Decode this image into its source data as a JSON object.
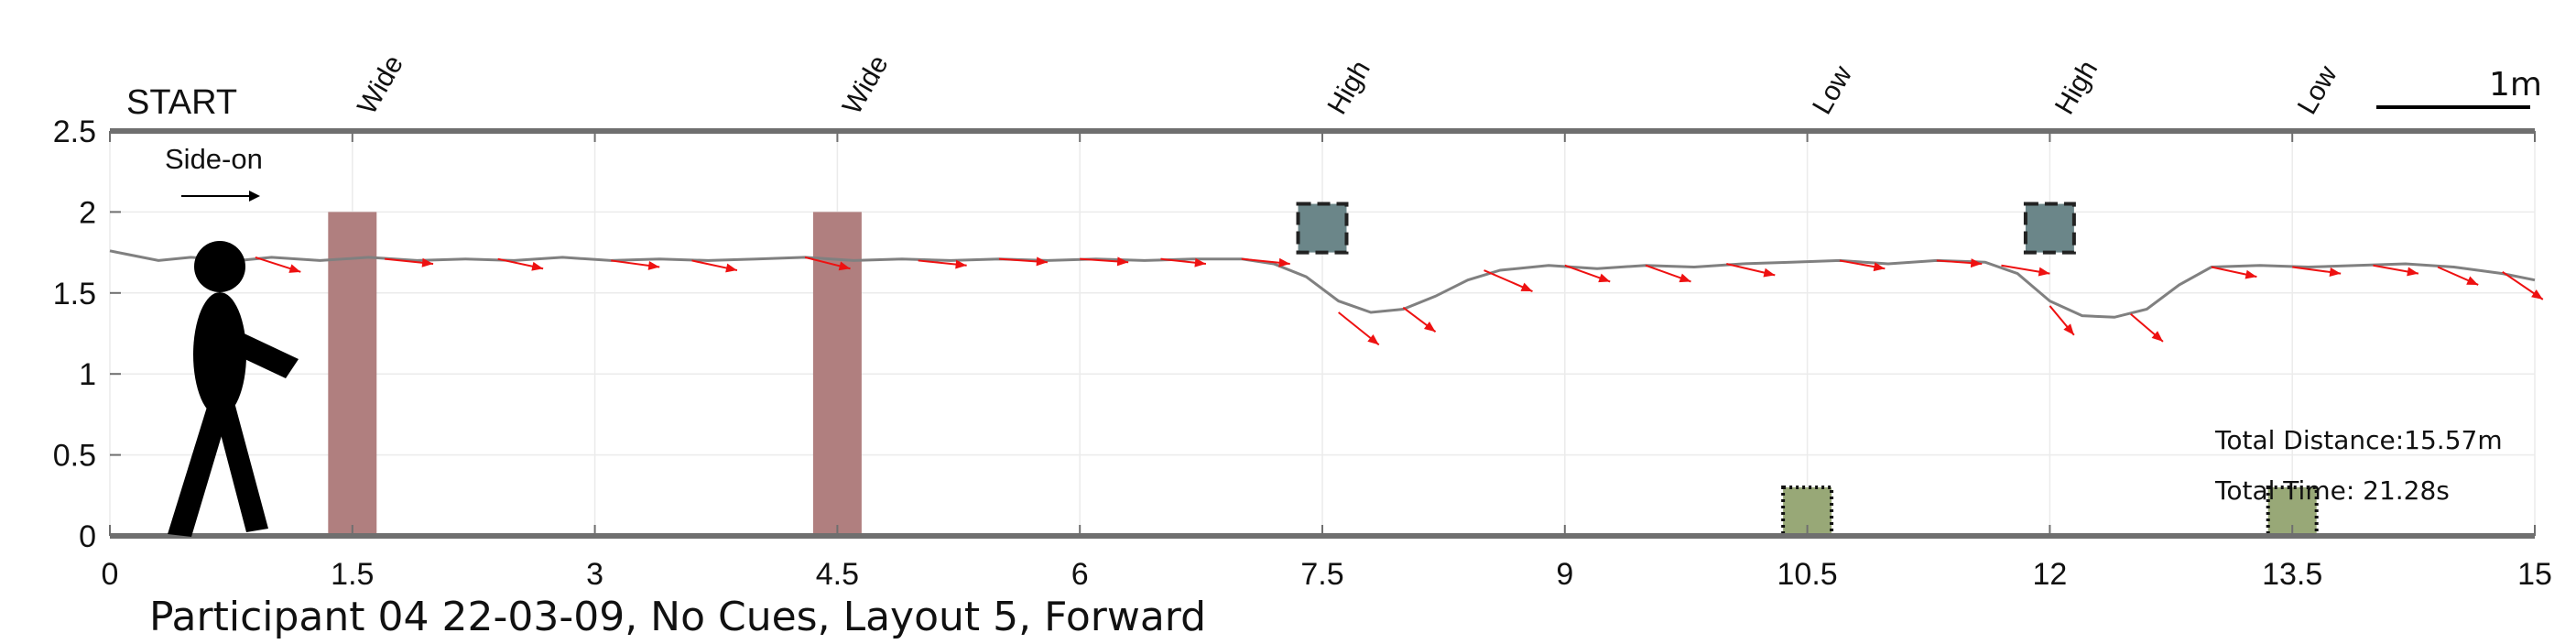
{
  "chart_data": {
    "type": "line",
    "title": "Participant 04 22-03-09, No Cues, Layout 5, Forward",
    "start_label": "START",
    "direction_label": "Side-on",
    "scale_label": "1m",
    "stats": {
      "distance": "Total Distance:15.57m",
      "time": "Total Time: 21.28s"
    },
    "xlim": [
      0,
      15
    ],
    "ylim": [
      0,
      2.5
    ],
    "grid": true,
    "x_ticks": [
      "0",
      "1.5",
      "3",
      "4.5",
      "6",
      "7.5",
      "9",
      "10.5",
      "12",
      "13.5",
      "15"
    ],
    "y_ticks": [
      "0",
      "0.5",
      "1",
      "1.5",
      "2",
      "2.5"
    ],
    "obstacle_labels": [
      {
        "x": 1.5,
        "text": "Wide"
      },
      {
        "x": 4.5,
        "text": "Wide"
      },
      {
        "x": 7.5,
        "text": "High"
      },
      {
        "x": 10.5,
        "text": "Low"
      },
      {
        "x": 12.0,
        "text": "High"
      },
      {
        "x": 13.5,
        "text": "Low"
      }
    ],
    "obstacles": [
      {
        "type": "wide",
        "x0": 1.35,
        "x1": 1.65,
        "y0": 0,
        "y1": 2.0,
        "color": "#b07f7f"
      },
      {
        "type": "wide",
        "x0": 4.35,
        "x1": 4.65,
        "y0": 0,
        "y1": 2.0,
        "color": "#b07f7f"
      },
      {
        "type": "high",
        "x0": 7.35,
        "x1": 7.65,
        "y0": 1.75,
        "y1": 2.05,
        "color": "#6b8689"
      },
      {
        "type": "low",
        "x0": 10.35,
        "x1": 10.65,
        "y0": 0,
        "y1": 0.3,
        "color": "#98a877"
      },
      {
        "type": "high",
        "x0": 11.85,
        "x1": 12.15,
        "y0": 1.75,
        "y1": 2.05,
        "color": "#6b8689"
      },
      {
        "type": "low",
        "x0": 13.35,
        "x1": 13.65,
        "y0": 0,
        "y1": 0.3,
        "color": "#98a877"
      }
    ],
    "series": [
      {
        "values_x": [
          0,
          0.1,
          0.3,
          0.5,
          0.8,
          1.0,
          1.3,
          1.6,
          1.9,
          2.2,
          2.5,
          2.8,
          3.1,
          3.4,
          3.7,
          4.0,
          4.3,
          4.6,
          4.9,
          5.2,
          5.5,
          5.8,
          6.1,
          6.4,
          6.7,
          7.0,
          7.2,
          7.4,
          7.6,
          7.8,
          8.0,
          8.2,
          8.4,
          8.6,
          8.9,
          9.2,
          9.5,
          9.8,
          10.1,
          10.4,
          10.7,
          11.0,
          11.3,
          11.6,
          11.8,
          12.0,
          12.2,
          12.4,
          12.6,
          12.8,
          13.0,
          13.3,
          13.6,
          13.9,
          14.2,
          14.5,
          14.8,
          15.0
        ],
        "values_y": [
          1.76,
          1.74,
          1.7,
          1.72,
          1.7,
          1.72,
          1.7,
          1.72,
          1.7,
          1.71,
          1.7,
          1.72,
          1.7,
          1.71,
          1.7,
          1.71,
          1.72,
          1.7,
          1.71,
          1.7,
          1.71,
          1.7,
          1.71,
          1.7,
          1.71,
          1.71,
          1.68,
          1.6,
          1.45,
          1.38,
          1.4,
          1.48,
          1.58,
          1.64,
          1.67,
          1.65,
          1.67,
          1.66,
          1.68,
          1.69,
          1.7,
          1.68,
          1.7,
          1.69,
          1.62,
          1.45,
          1.36,
          1.35,
          1.4,
          1.55,
          1.66,
          1.67,
          1.66,
          1.67,
          1.68,
          1.66,
          1.62,
          1.58
        ],
        "color": "#808080"
      }
    ],
    "arrows": [
      {
        "x": 0.9,
        "y": 1.72,
        "dx": 0.28,
        "dy": -0.09
      },
      {
        "x": 1.7,
        "y": 1.71,
        "dx": 0.3,
        "dy": -0.03
      },
      {
        "x": 2.4,
        "y": 1.71,
        "dx": 0.28,
        "dy": -0.06
      },
      {
        "x": 3.1,
        "y": 1.7,
        "dx": 0.3,
        "dy": -0.04
      },
      {
        "x": 3.6,
        "y": 1.7,
        "dx": 0.28,
        "dy": -0.06
      },
      {
        "x": 4.3,
        "y": 1.72,
        "dx": 0.28,
        "dy": -0.07
      },
      {
        "x": 5.0,
        "y": 1.7,
        "dx": 0.3,
        "dy": -0.03
      },
      {
        "x": 5.5,
        "y": 1.71,
        "dx": 0.3,
        "dy": -0.02
      },
      {
        "x": 6.0,
        "y": 1.71,
        "dx": 0.3,
        "dy": -0.02
      },
      {
        "x": 6.5,
        "y": 1.71,
        "dx": 0.28,
        "dy": -0.03
      },
      {
        "x": 7.0,
        "y": 1.71,
        "dx": 0.3,
        "dy": -0.03
      },
      {
        "x": 7.6,
        "y": 1.38,
        "dx": 0.25,
        "dy": -0.2
      },
      {
        "x": 8.0,
        "y": 1.41,
        "dx": 0.2,
        "dy": -0.15
      },
      {
        "x": 8.5,
        "y": 1.64,
        "dx": 0.3,
        "dy": -0.13
      },
      {
        "x": 9.0,
        "y": 1.67,
        "dx": 0.28,
        "dy": -0.1
      },
      {
        "x": 9.5,
        "y": 1.67,
        "dx": 0.28,
        "dy": -0.1
      },
      {
        "x": 10.0,
        "y": 1.68,
        "dx": 0.3,
        "dy": -0.07
      },
      {
        "x": 10.7,
        "y": 1.7,
        "dx": 0.28,
        "dy": -0.05
      },
      {
        "x": 11.3,
        "y": 1.7,
        "dx": 0.28,
        "dy": -0.02
      },
      {
        "x": 11.7,
        "y": 1.67,
        "dx": 0.3,
        "dy": -0.05
      },
      {
        "x": 12.0,
        "y": 1.42,
        "dx": 0.15,
        "dy": -0.18
      },
      {
        "x": 12.5,
        "y": 1.37,
        "dx": 0.2,
        "dy": -0.17
      },
      {
        "x": 13.0,
        "y": 1.66,
        "dx": 0.28,
        "dy": -0.06
      },
      {
        "x": 13.5,
        "y": 1.66,
        "dx": 0.3,
        "dy": -0.04
      },
      {
        "x": 14.0,
        "y": 1.67,
        "dx": 0.28,
        "dy": -0.05
      },
      {
        "x": 14.4,
        "y": 1.66,
        "dx": 0.25,
        "dy": -0.11
      },
      {
        "x": 14.8,
        "y": 1.63,
        "dx": 0.25,
        "dy": -0.17
      }
    ],
    "colors": {
      "axis": "#6f6f6f",
      "grid": "#ebebeb",
      "trajectory": "#808080",
      "arrow": "#ee1111",
      "text": "#111111"
    }
  }
}
